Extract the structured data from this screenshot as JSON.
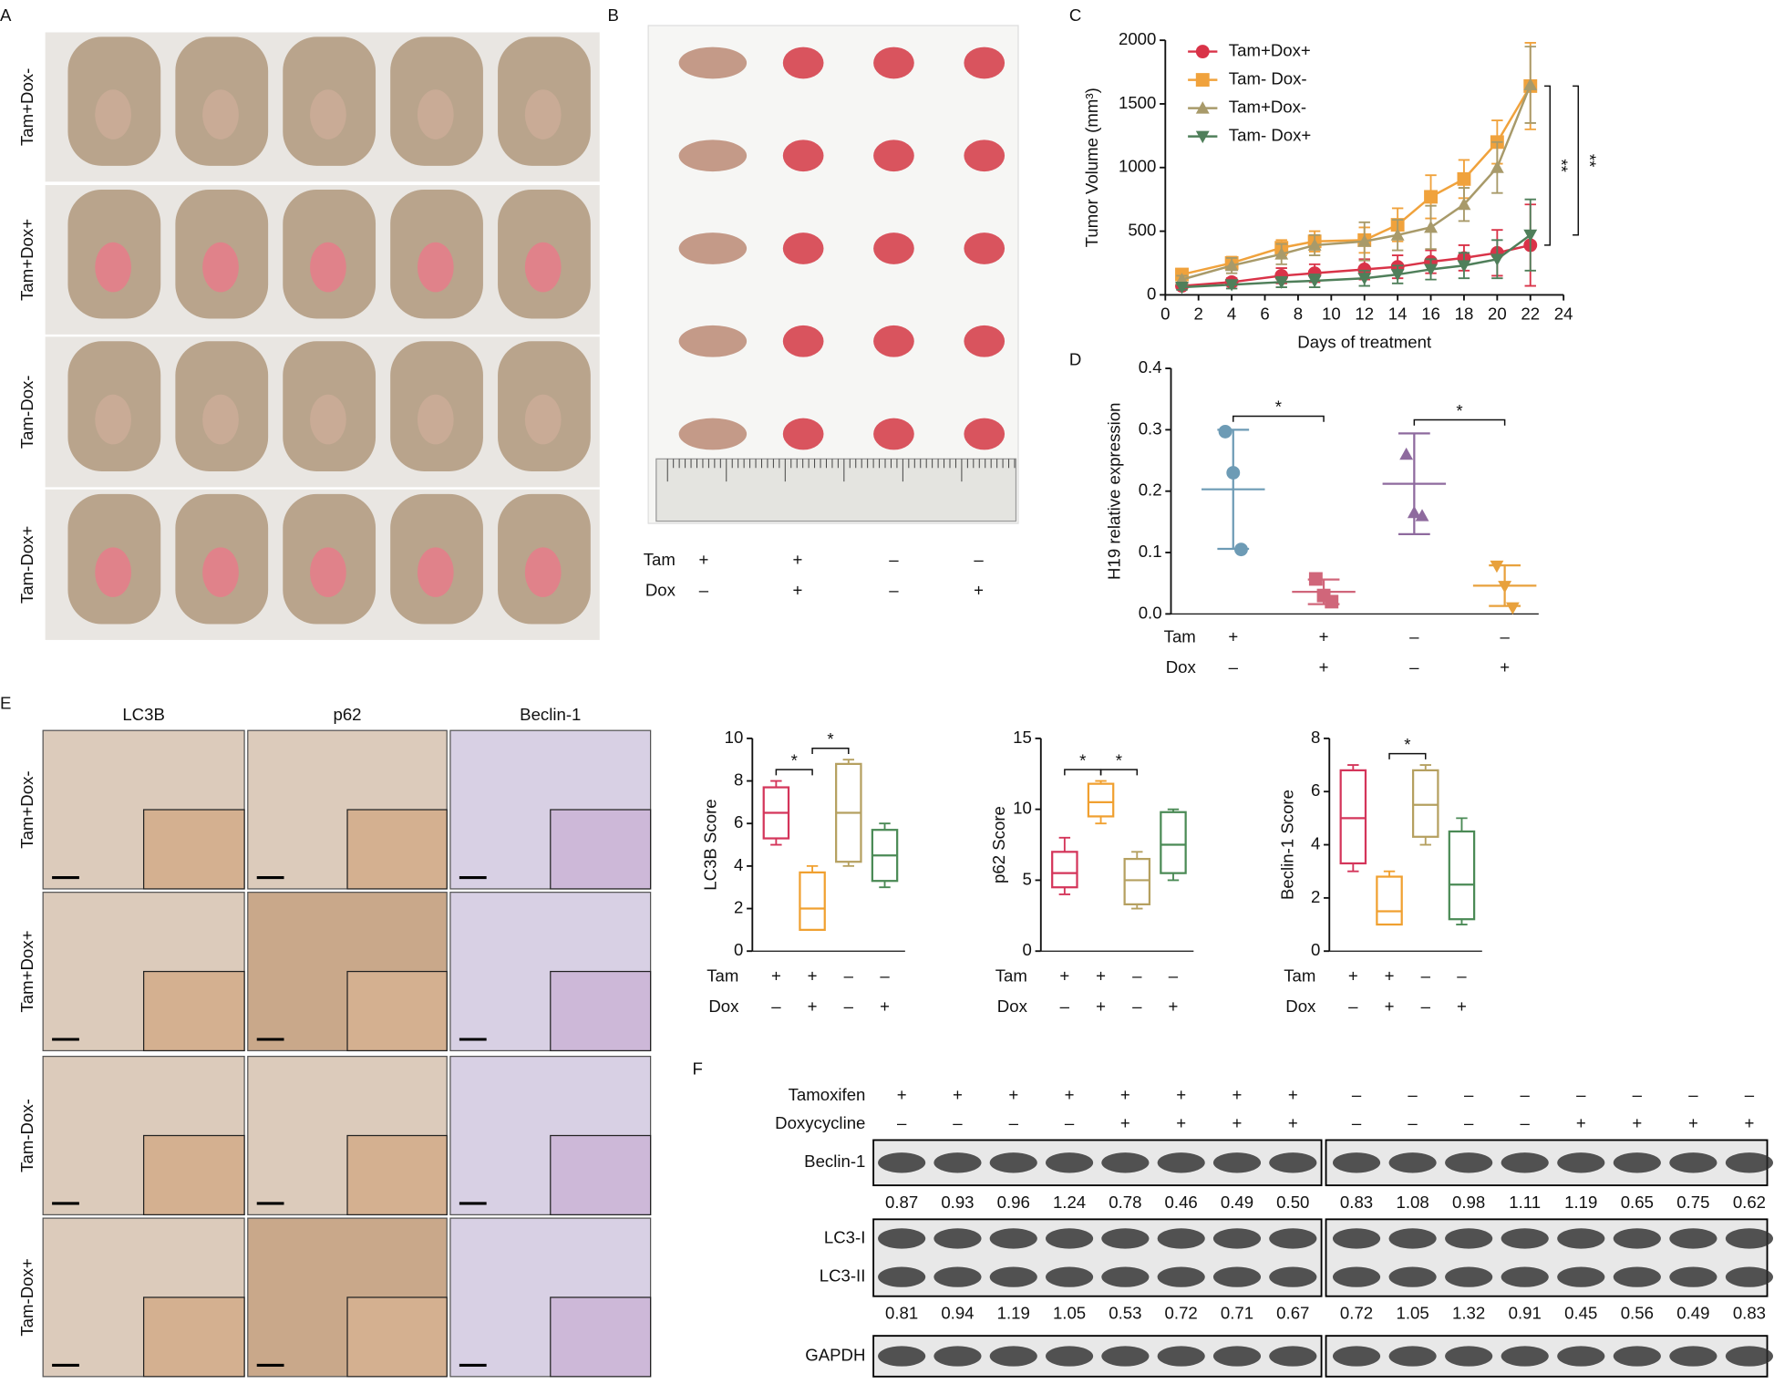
{
  "panel_letters": [
    "A",
    "B",
    "C",
    "D",
    "E",
    "F"
  ],
  "sign_colors": {
    "+": "#e0282e",
    "–": "#222222"
  },
  "panel_a": {
    "row_labels": [
      "Tam+Dox-",
      "Tam+Dox+",
      "Tam-Dox-",
      "Tam-Dox+"
    ]
  },
  "panel_b": {
    "treatment": [
      {
        "name": "Tam",
        "signs": [
          "+",
          "+",
          "–",
          "–"
        ]
      },
      {
        "name": "Dox",
        "signs": [
          "–",
          "+",
          "–",
          "+"
        ]
      }
    ]
  },
  "panel_e_images": {
    "columns": [
      "LC3B",
      "p62",
      "Beclin-1"
    ],
    "rows": [
      "Tam+Dox-",
      "Tam+Dox+",
      "Tam-Dox-",
      "Tam-Dox+"
    ]
  },
  "panel_f": {
    "treatment": [
      {
        "name": "Tamoxifen",
        "signs": [
          "+",
          "+",
          "+",
          "+",
          "+",
          "+",
          "+",
          "+",
          "–",
          "–",
          "–",
          "–",
          "–",
          "–",
          "–",
          "–"
        ]
      },
      {
        "name": "Doxycycline",
        "signs": [
          "–",
          "–",
          "–",
          "–",
          "+",
          "+",
          "+",
          "+",
          "–",
          "–",
          "–",
          "–",
          "+",
          "+",
          "+",
          "+"
        ]
      }
    ],
    "blots": [
      {
        "labels": [
          "Beclin-1"
        ],
        "values": [
          "0.87",
          "0.93",
          "0.96",
          "1.24",
          "0.78",
          "0.46",
          "0.49",
          "0.50",
          "0.83",
          "1.08",
          "0.98",
          "1.11",
          "1.19",
          "0.65",
          "0.75",
          "0.62"
        ]
      },
      {
        "labels": [
          "LC3-I",
          "LC3-II"
        ],
        "values": [
          "0.81",
          "0.94",
          "1.19",
          "1.05",
          "0.53",
          "0.72",
          "0.71",
          "0.67",
          "0.72",
          "1.05",
          "1.32",
          "0.91",
          "0.45",
          "0.56",
          "0.49",
          "0.83"
        ]
      },
      {
        "labels": [
          "GAPDH"
        ]
      }
    ]
  },
  "chart_data": [
    {
      "type": "line",
      "xlabel": "Days of treatment",
      "ylabel": "Tumor Volume (mm³)",
      "x": [
        1,
        4,
        7,
        9,
        12,
        14,
        16,
        18,
        20,
        22
      ],
      "xlim": [
        0,
        24
      ],
      "xticks": [
        0,
        2,
        4,
        6,
        8,
        10,
        12,
        14,
        16,
        18,
        20,
        22,
        24
      ],
      "ylim": [
        0,
        2000
      ],
      "yticks": [
        0,
        500,
        1000,
        1500,
        2000
      ],
      "series": [
        {
          "name": "Tam+Dox+",
          "color": "#d93348",
          "marker": "circle",
          "values": [
            70,
            100,
            150,
            170,
            200,
            220,
            260,
            290,
            330,
            390
          ],
          "errors": [
            20,
            30,
            60,
            70,
            80,
            90,
            90,
            100,
            180,
            320
          ]
        },
        {
          "name": "Tam- Dox-",
          "color": "#f0a23c",
          "marker": "square",
          "values": [
            160,
            250,
            370,
            420,
            430,
            550,
            770,
            910,
            1200,
            1640
          ],
          "errors": [
            30,
            50,
            60,
            80,
            100,
            130,
            170,
            150,
            170,
            340
          ]
        },
        {
          "name": "Tam+Dox-",
          "color": "#a89a6a",
          "marker": "triangle",
          "values": [
            120,
            230,
            320,
            390,
            420,
            470,
            530,
            710,
            1000,
            1650
          ],
          "errors": [
            30,
            60,
            80,
            80,
            150,
            120,
            170,
            130,
            200,
            300
          ]
        },
        {
          "name": "Tam- Dox+",
          "color": "#4f7f5a",
          "marker": "triangle-down",
          "values": [
            60,
            80,
            100,
            110,
            130,
            160,
            200,
            230,
            280,
            470
          ],
          "errors": [
            20,
            30,
            40,
            50,
            60,
            70,
            80,
            100,
            150,
            280
          ]
        }
      ],
      "significance": [
        {
          "label": "**",
          "series": [
            1,
            0
          ]
        },
        {
          "label": "**",
          "series": [
            1,
            3
          ]
        }
      ]
    },
    {
      "type": "dot",
      "ylabel": "H19 relative expression",
      "ylim": [
        0,
        0.4
      ],
      "yticks": [
        {
          "value": 0,
          "label": "0.0"
        },
        0.1,
        0.2,
        0.3,
        0.4
      ],
      "colors": [
        "#6d9bb5",
        "#d0667a",
        "#8e6a9e",
        "#e8a13c"
      ],
      "markers": [
        "circle",
        "square",
        "triangle",
        "triangle-down"
      ],
      "points": [
        [
          0.297,
          0.23,
          0.105
        ],
        [
          0.057,
          0.03,
          0.02
        ],
        [
          0.26,
          0.165,
          0.16
        ],
        [
          0.078,
          0.045,
          0.01
        ]
      ],
      "means": [
        0.203,
        0.036,
        0.212,
        0.046
      ],
      "sds": [
        0.097,
        0.02,
        0.082,
        0.033
      ],
      "treatment": [
        {
          "name": "Tam",
          "signs": [
            "+",
            "+",
            "–",
            "–"
          ]
        },
        {
          "name": "Dox",
          "signs": [
            "–",
            "+",
            "–",
            "+"
          ]
        }
      ],
      "significance": [
        {
          "label": "*",
          "groups": [
            0,
            1
          ]
        },
        {
          "label": "*",
          "groups": [
            2,
            3
          ]
        }
      ]
    },
    {
      "type": "box",
      "ylabel": "LC3B Score",
      "ylim": [
        0,
        10
      ],
      "yticks": [
        0,
        2,
        4,
        6,
        8,
        10
      ],
      "colors": [
        "#d4355a",
        "#f0a030",
        "#b5a060",
        "#4a8a55"
      ],
      "min": [
        5,
        1,
        4,
        3
      ],
      "q1": [
        5.3,
        1,
        4.2,
        3.3
      ],
      "median": [
        6.5,
        2,
        6.5,
        4.5
      ],
      "q3": [
        7.7,
        3.7,
        8.8,
        5.7
      ],
      "max": [
        8,
        4,
        9,
        6
      ],
      "treatment": [
        {
          "name": "Tam",
          "signs": [
            "+",
            "+",
            "–",
            "–"
          ]
        },
        {
          "name": "Dox",
          "signs": [
            "–",
            "+",
            "–",
            "+"
          ]
        }
      ],
      "significance": [
        {
          "label": "*",
          "groups": [
            0,
            1
          ]
        },
        {
          "label": "*",
          "groups": [
            1,
            2
          ]
        }
      ]
    },
    {
      "type": "box",
      "ylabel": "p62 Score",
      "ylim": [
        0,
        15
      ],
      "yticks": [
        0,
        5,
        10,
        15
      ],
      "colors": [
        "#d4355a",
        "#f0a030",
        "#b5a060",
        "#4a8a55"
      ],
      "min": [
        4,
        9,
        3,
        5
      ],
      "q1": [
        4.5,
        9.5,
        3.3,
        5.5
      ],
      "median": [
        5.5,
        10.5,
        5,
        7.5
      ],
      "q3": [
        7,
        11.8,
        6.5,
        9.8
      ],
      "max": [
        8,
        12,
        7,
        10
      ],
      "treatment": [
        {
          "name": "Tam",
          "signs": [
            "+",
            "+",
            "–",
            "–"
          ]
        },
        {
          "name": "Dox",
          "signs": [
            "–",
            "+",
            "–",
            "+"
          ]
        }
      ],
      "significance": [
        {
          "label": "*",
          "groups": [
            0,
            1
          ]
        },
        {
          "label": "*",
          "groups": [
            1,
            2
          ]
        }
      ]
    },
    {
      "type": "box",
      "ylabel": "Beclin-1 Score",
      "ylim": [
        0,
        8
      ],
      "yticks": [
        0,
        2,
        4,
        6,
        8
      ],
      "colors": [
        "#d4355a",
        "#f0a030",
        "#b5a060",
        "#4a8a55"
      ],
      "min": [
        3,
        1,
        4,
        1
      ],
      "q1": [
        3.3,
        1,
        4.3,
        1.2
      ],
      "median": [
        5,
        1.5,
        5.5,
        2.5
      ],
      "q3": [
        6.8,
        2.8,
        6.8,
        4.5
      ],
      "max": [
        7,
        3,
        7,
        5
      ],
      "treatment": [
        {
          "name": "Tam",
          "signs": [
            "+",
            "+",
            "–",
            "–"
          ]
        },
        {
          "name": "Dox",
          "signs": [
            "–",
            "+",
            "–",
            "+"
          ]
        }
      ],
      "significance": [
        {
          "label": "*",
          "groups": [
            1,
            2
          ]
        }
      ]
    }
  ]
}
